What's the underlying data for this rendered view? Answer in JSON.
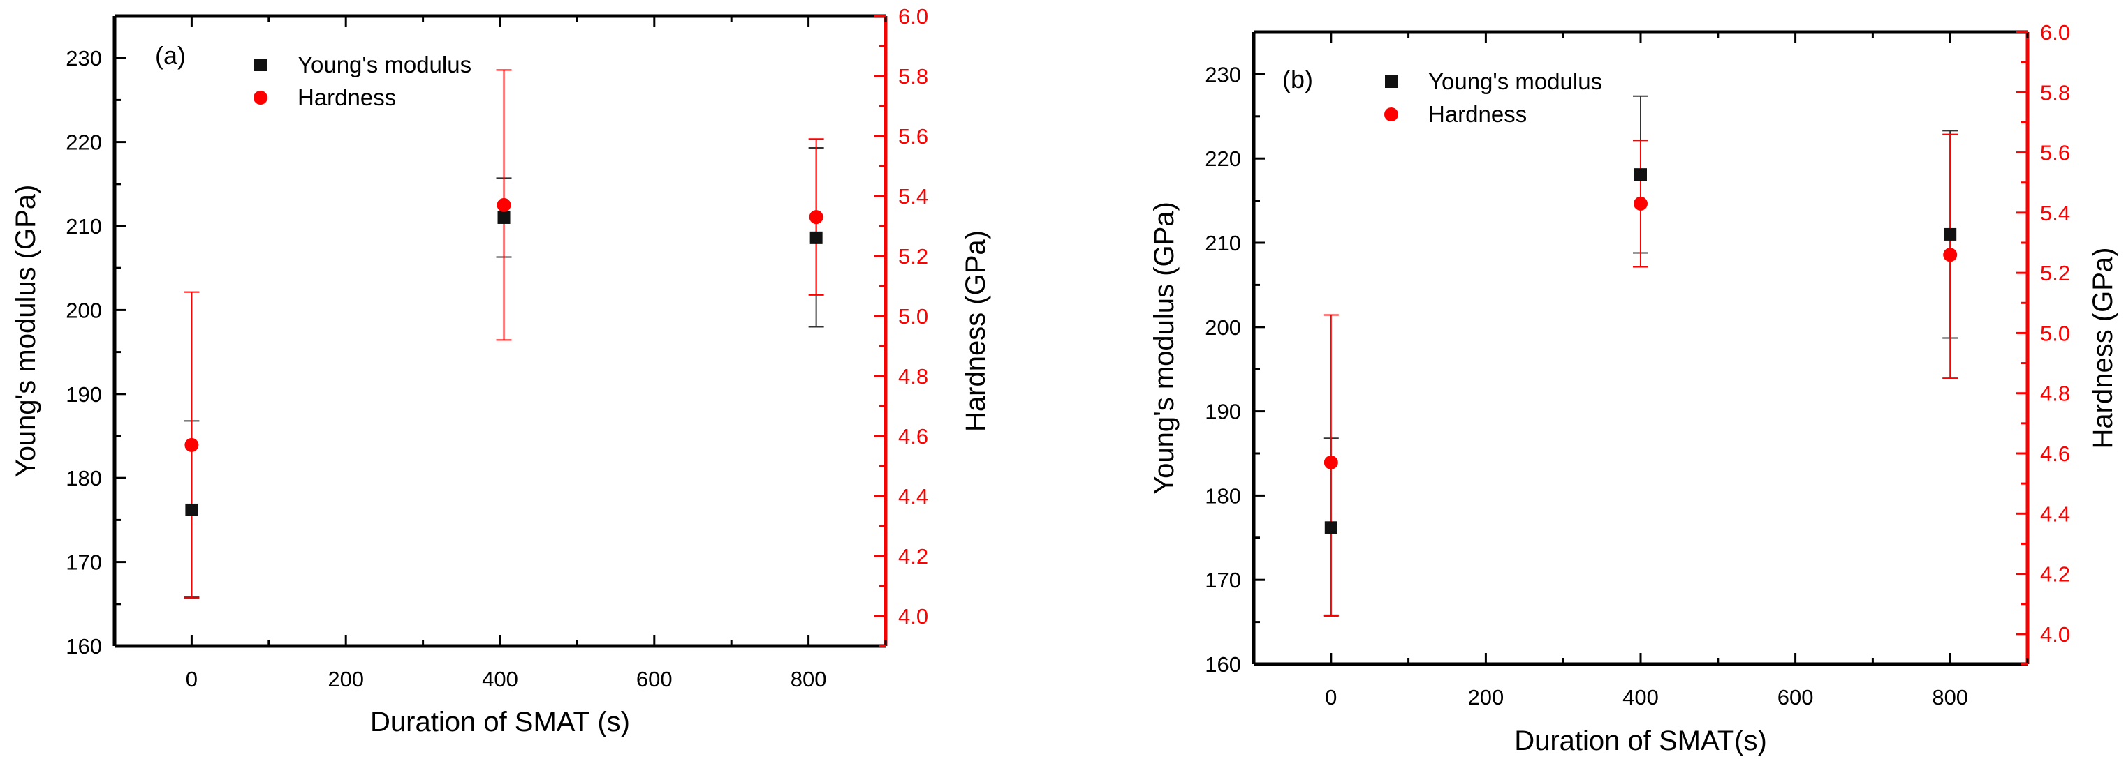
{
  "colors": {
    "axis_left": "#000000",
    "axis_right": "#ff0000",
    "series_modulus": "#111111",
    "series_hardness": "#ff0000",
    "errorbar_modulus": "#333333",
    "errorbar_hardness": "#ff0000"
  },
  "chart_data": [
    {
      "type": "scatter",
      "panel_label": "(a)",
      "xlabel": "Duration of SMAT (s)",
      "ylabel_left": "Young's modulus (GPa)",
      "ylabel_right": "Hardness (GPa)",
      "xlim": [
        -100,
        900
      ],
      "ylim_left": [
        160,
        235
      ],
      "ylim_right": [
        3.9,
        6.0
      ],
      "x_ticks": [
        0,
        200,
        400,
        600,
        800
      ],
      "y_left_ticks": [
        160,
        170,
        180,
        190,
        200,
        210,
        220,
        230
      ],
      "y_right_ticks": [
        4.0,
        4.2,
        4.4,
        4.6,
        4.8,
        5.0,
        5.2,
        5.4,
        5.6,
        5.8,
        6.0
      ],
      "x_tick_labels": [
        "0",
        "200",
        "400",
        "600",
        "800"
      ],
      "y_left_tick_labels": [
        "160",
        "170",
        "180",
        "190",
        "200",
        "210",
        "220",
        "230"
      ],
      "y_right_tick_labels": [
        "4.0",
        "4.2",
        "4.4",
        "4.6",
        "4.8",
        "5.0",
        "5.2",
        "5.4",
        "5.6",
        "5.8",
        "6.0"
      ],
      "legend_position": "top-left",
      "grid": false,
      "series": [
        {
          "name": "Young's modulus",
          "axis": "left",
          "marker": "square",
          "x": [
            0,
            405,
            810
          ],
          "y": [
            176.2,
            211.0,
            208.6
          ],
          "err_low": [
            165.8,
            206.3,
            198.0
          ],
          "err_high": [
            186.8,
            215.7,
            219.3
          ]
        },
        {
          "name": "Hardness",
          "axis": "right",
          "marker": "circle",
          "x": [
            0,
            405,
            810
          ],
          "y": [
            4.57,
            5.37,
            5.33
          ],
          "err_low": [
            4.06,
            4.92,
            5.07
          ],
          "err_high": [
            5.08,
            5.82,
            5.59
          ]
        }
      ]
    },
    {
      "type": "scatter",
      "panel_label": "(b)",
      "xlabel": "Duration of SMAT(s)",
      "ylabel_left": "Young's modulus (GPa)",
      "ylabel_right": "Hardness (GPa)",
      "xlim": [
        -100,
        900
      ],
      "ylim_left": [
        160,
        235
      ],
      "ylim_right": [
        3.9,
        6.0
      ],
      "x_ticks": [
        0,
        200,
        400,
        600,
        800
      ],
      "y_left_ticks": [
        160,
        170,
        180,
        190,
        200,
        210,
        220,
        230
      ],
      "y_right_ticks": [
        4.0,
        4.2,
        4.4,
        4.6,
        4.8,
        5.0,
        5.2,
        5.4,
        5.6,
        5.8,
        6.0
      ],
      "x_tick_labels": [
        "0",
        "200",
        "400",
        "600",
        "800"
      ],
      "y_left_tick_labels": [
        "160",
        "170",
        "180",
        "190",
        "200",
        "210",
        "220",
        "230"
      ],
      "y_right_tick_labels": [
        "4.0",
        "4.2",
        "4.4",
        "4.6",
        "4.8",
        "5.0",
        "5.2",
        "5.4",
        "5.6",
        "5.8",
        "6.0"
      ],
      "legend_position": "top-left",
      "grid": false,
      "series": [
        {
          "name": "Young's modulus",
          "axis": "left",
          "marker": "square",
          "x": [
            0,
            400,
            800
          ],
          "y": [
            176.2,
            218.1,
            211.0
          ],
          "err_low": [
            165.8,
            208.8,
            198.7
          ],
          "err_high": [
            186.8,
            227.4,
            223.3
          ]
        },
        {
          "name": "Hardness",
          "axis": "right",
          "marker": "circle",
          "x": [
            0,
            400,
            800
          ],
          "y": [
            4.57,
            5.43,
            5.26
          ],
          "err_low": [
            4.06,
            5.22,
            4.85
          ],
          "err_high": [
            5.06,
            5.64,
            5.66
          ]
        }
      ]
    }
  ]
}
